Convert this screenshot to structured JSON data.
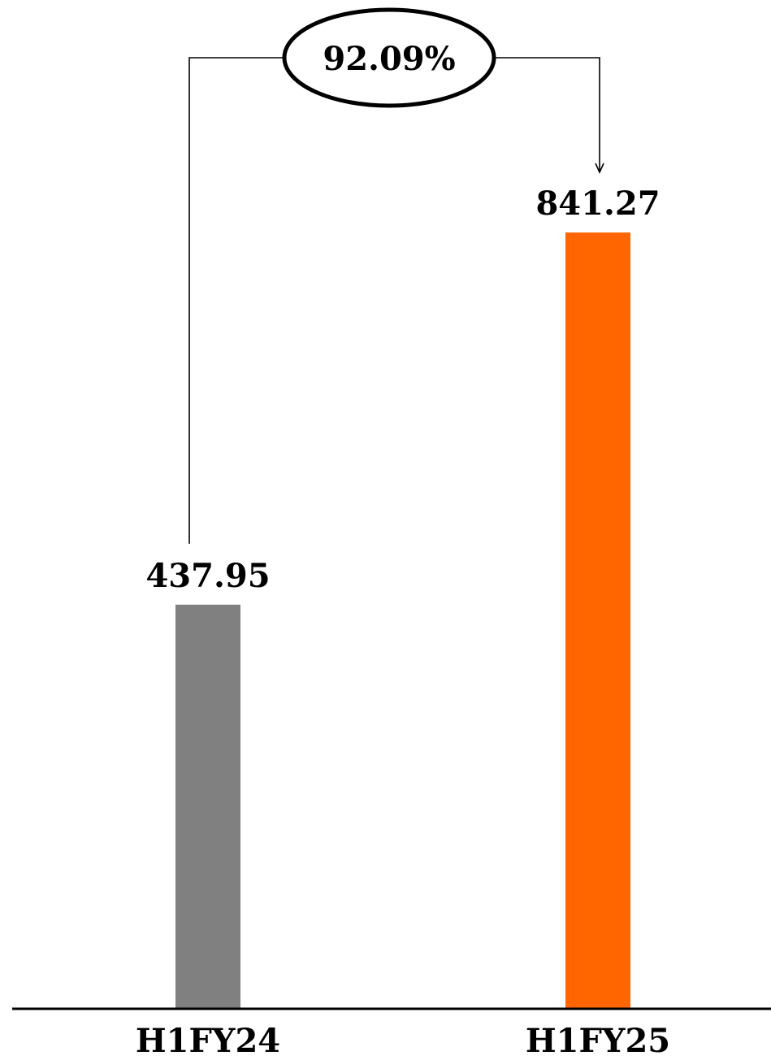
{
  "chart_data": {
    "type": "bar",
    "categories": [
      "H1FY24",
      "H1FY25"
    ],
    "values": [
      437.95,
      841.27
    ],
    "value_labels": [
      "437.95",
      "841.27"
    ],
    "bar_colors": [
      "#808080",
      "#FF6600"
    ],
    "title": "",
    "xlabel": "",
    "ylabel": "",
    "ylim": [
      0,
      900
    ],
    "grid": false,
    "legend": "none",
    "annotation": {
      "type": "growth-arrow",
      "from": "H1FY24",
      "to": "H1FY25",
      "label": "92.09%"
    }
  }
}
